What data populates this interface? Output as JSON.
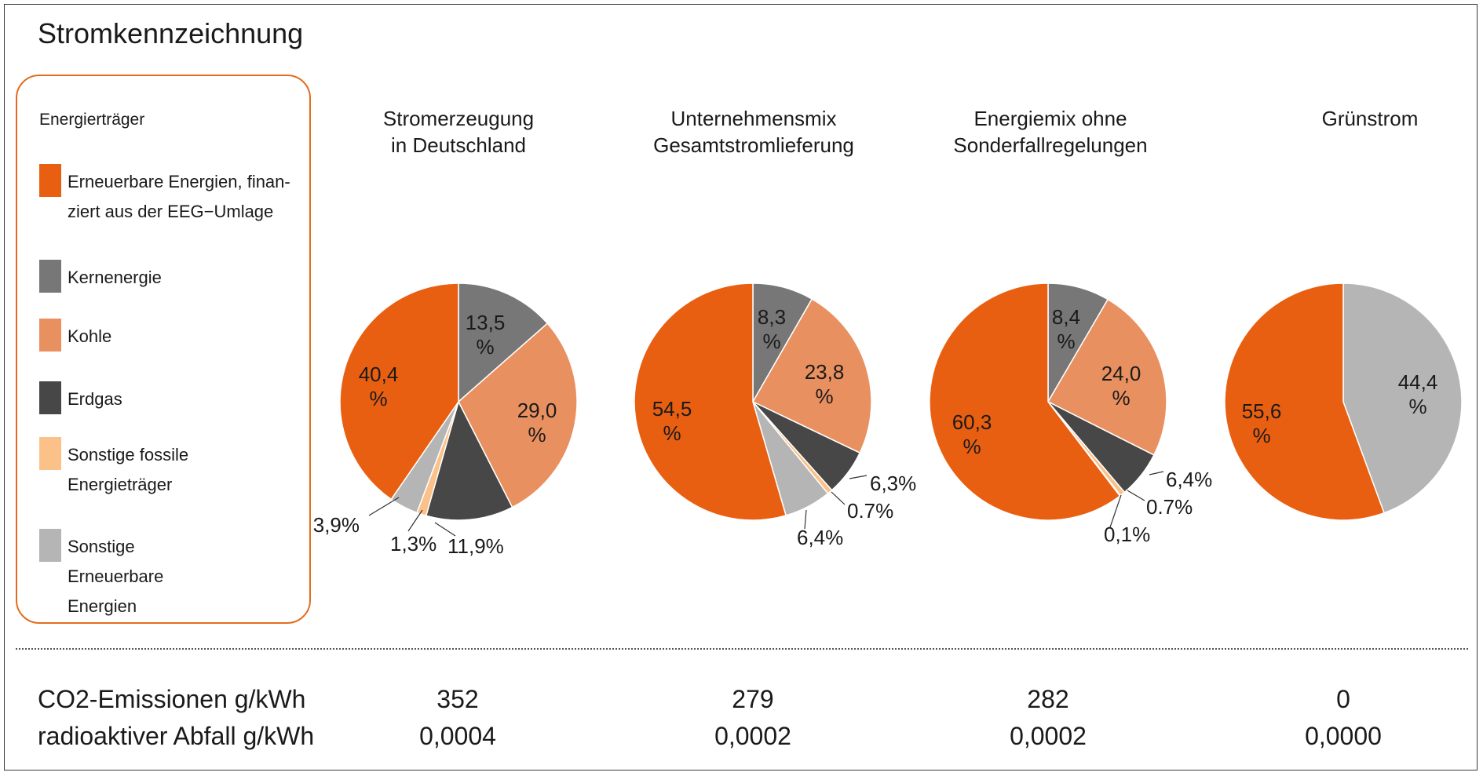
{
  "title": "Stromkennzeichnung",
  "legend": {
    "heading": "Energierträger",
    "items": [
      {
        "key": "eeg",
        "label": "Erneuerbare Energien, finan-\nziert aus der EEG−Umlage",
        "color": "#E95F11"
      },
      {
        "key": "kern",
        "label": "Kernenergie",
        "color": "#777777"
      },
      {
        "key": "kohle",
        "label": "Kohle",
        "color": "#E99060"
      },
      {
        "key": "erdgas",
        "label": "Erdgas",
        "color": "#474747"
      },
      {
        "key": "fossil",
        "label": "Sonstige fossile\nEnergieträger",
        "color": "#FBC189"
      },
      {
        "key": "sonstEE",
        "label": "Sonstige\nErneuerbare\nEnergien",
        "color": "#B5B5B5"
      }
    ]
  },
  "chart_data": [
    {
      "type": "pie",
      "title": "Stromerzeugung\nin Deutschland",
      "slices": [
        {
          "key": "kern",
          "value": 13.5,
          "label": "13,5\n%"
        },
        {
          "key": "kohle",
          "value": 29.0,
          "label": "29,0\n%"
        },
        {
          "key": "erdgas",
          "value": 11.9,
          "label": "11,9%"
        },
        {
          "key": "fossil",
          "value": 1.3,
          "label": "1,3%"
        },
        {
          "key": "sonstEE",
          "value": 3.9,
          "label": "3,9%"
        },
        {
          "key": "eeg",
          "value": 40.4,
          "label": "40,4\n%"
        }
      ]
    },
    {
      "type": "pie",
      "title": "Unternehmensmix\nGesamtstromlieferung",
      "slices": [
        {
          "key": "kern",
          "value": 8.3,
          "label": "8,3\n%"
        },
        {
          "key": "kohle",
          "value": 23.8,
          "label": "23,8\n%"
        },
        {
          "key": "erdgas",
          "value": 6.3,
          "label": "6,3%"
        },
        {
          "key": "fossil",
          "value": 0.7,
          "label": "0.7%"
        },
        {
          "key": "sonstEE",
          "value": 6.4,
          "label": "6,4%"
        },
        {
          "key": "eeg",
          "value": 54.5,
          "label": "54,5\n%"
        }
      ]
    },
    {
      "type": "pie",
      "title": "Energiemix ohne\nSonderfallregelungen",
      "slices": [
        {
          "key": "kern",
          "value": 8.4,
          "label": "8,4\n%"
        },
        {
          "key": "kohle",
          "value": 24.0,
          "label": "24,0\n%"
        },
        {
          "key": "erdgas",
          "value": 6.4,
          "label": "6,4%"
        },
        {
          "key": "fossil",
          "value": 0.7,
          "label": "0.7%"
        },
        {
          "key": "sonstEE",
          "value": 0.1,
          "label": "0,1%"
        },
        {
          "key": "eeg",
          "value": 60.3,
          "label": "60,3\n%"
        }
      ]
    },
    {
      "type": "pie",
      "title": "Grünstrom",
      "slices": [
        {
          "key": "sonstEE",
          "value": 44.4,
          "label": "44,4\n%"
        },
        {
          "key": "eeg",
          "value": 55.6,
          "label": "55,6\n%"
        }
      ]
    }
  ],
  "metrics": {
    "co2_label": "CO2-Emissionen g/kWh",
    "waste_label": "radioaktiver Abfall g/kWh",
    "co2_values": [
      "352",
      "279",
      "282",
      "0"
    ],
    "waste_values": [
      "0,0004",
      "0,0002",
      "0,0002",
      "0,0000"
    ]
  }
}
